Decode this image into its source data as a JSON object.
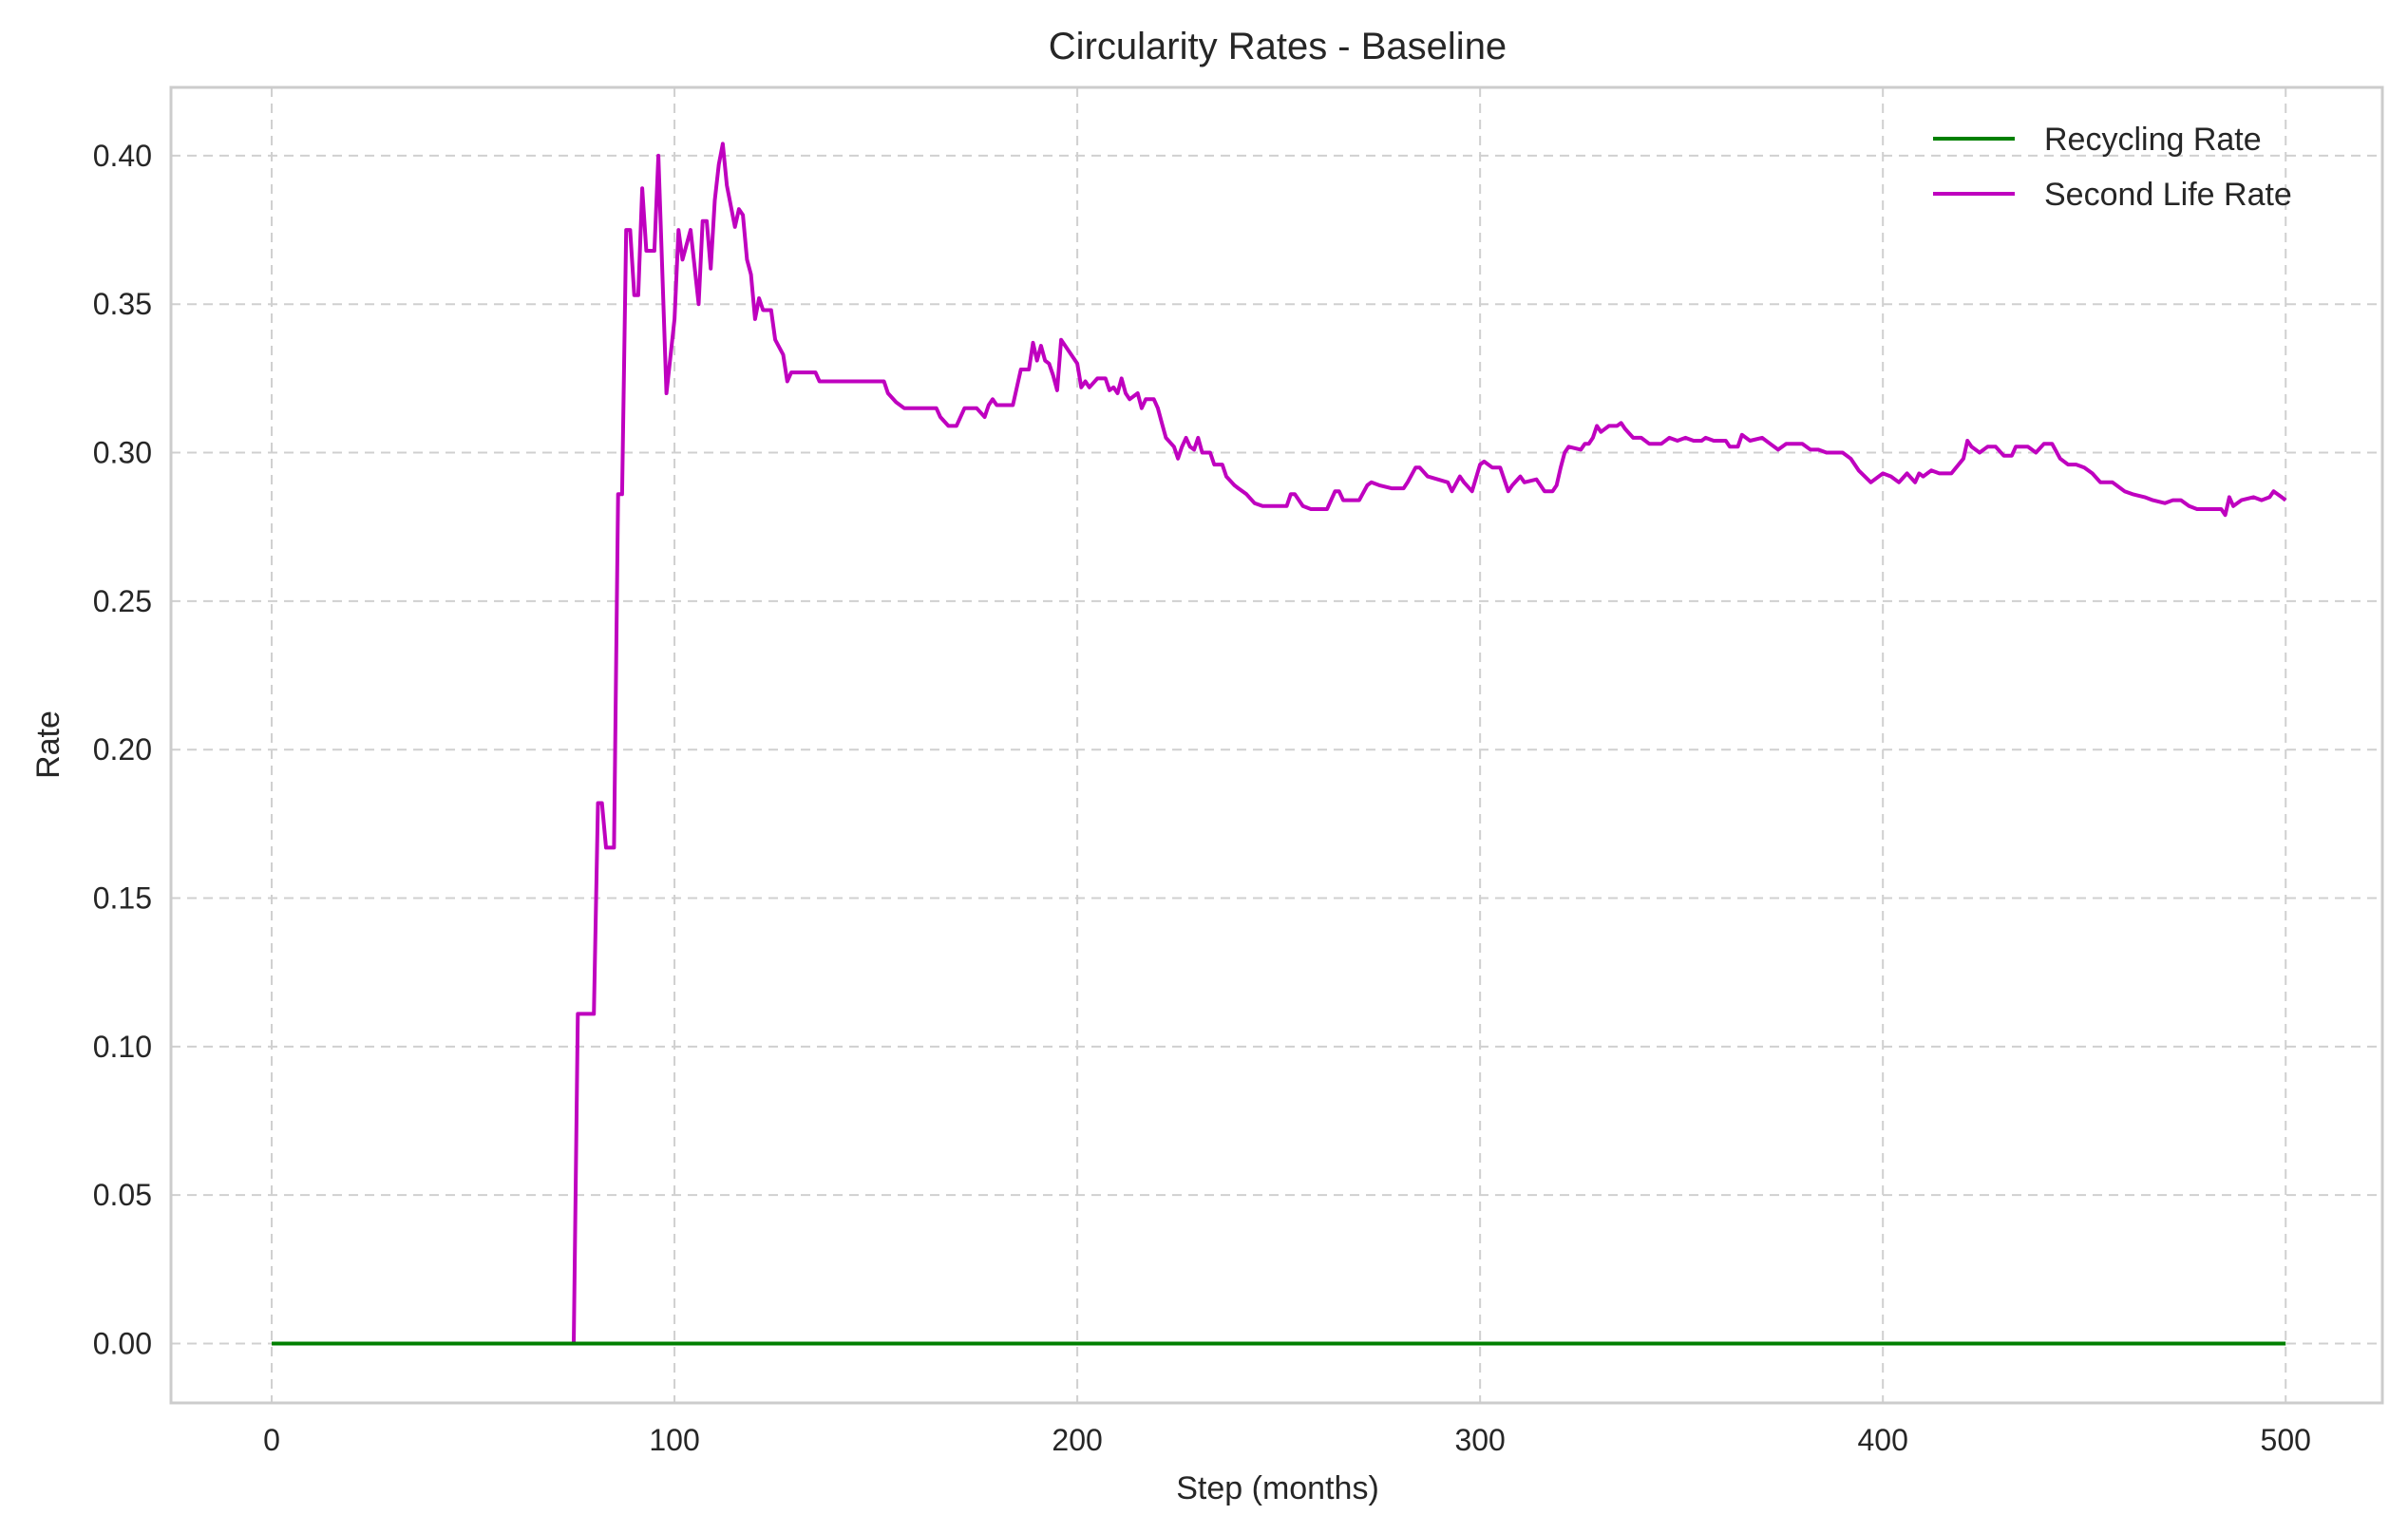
{
  "chart_data": {
    "type": "line",
    "title": "Circularity Rates - Baseline",
    "xlabel": "Step (months)",
    "ylabel": "Rate",
    "xlim": [
      -25,
      524
    ],
    "ylim": [
      -0.02,
      0.423
    ],
    "x_ticks": [
      0,
      100,
      200,
      300,
      400,
      500
    ],
    "y_ticks": [
      0.0,
      0.05,
      0.1,
      0.15,
      0.2,
      0.25,
      0.3,
      0.35,
      0.4
    ],
    "grid": true,
    "legend_position": "top-right",
    "colors": {
      "recycling": "#008000",
      "second_life": "#bf00bf"
    },
    "series": [
      {
        "name": "Recycling Rate",
        "color": "#008000",
        "points": [
          [
            0,
            0
          ],
          [
            500,
            0
          ]
        ]
      },
      {
        "name": "Second Life Rate",
        "color": "#bf00bf",
        "points": [
          [
            0,
            0
          ],
          [
            75,
            0
          ],
          [
            76,
            0.111
          ],
          [
            80,
            0.111
          ],
          [
            81,
            0.182
          ],
          [
            82,
            0.182
          ],
          [
            83,
            0.167
          ],
          [
            85,
            0.167
          ],
          [
            86,
            0.286
          ],
          [
            87,
            0.286
          ],
          [
            88,
            0.375
          ],
          [
            89,
            0.375
          ],
          [
            90,
            0.353
          ],
          [
            91,
            0.353
          ],
          [
            92,
            0.389
          ],
          [
            93,
            0.368
          ],
          [
            95,
            0.368
          ],
          [
            96,
            0.4
          ],
          [
            98,
            0.32
          ],
          [
            100,
            0.345
          ],
          [
            101,
            0.375
          ],
          [
            102,
            0.365
          ],
          [
            104,
            0.375
          ],
          [
            106,
            0.35
          ],
          [
            107,
            0.378
          ],
          [
            108,
            0.378
          ],
          [
            109,
            0.362
          ],
          [
            110,
            0.385
          ],
          [
            111,
            0.397
          ],
          [
            112,
            0.404
          ],
          [
            113,
            0.39
          ],
          [
            115,
            0.376
          ],
          [
            116,
            0.382
          ],
          [
            117,
            0.38
          ],
          [
            118,
            0.365
          ],
          [
            119,
            0.36
          ],
          [
            120,
            0.345
          ],
          [
            121,
            0.352
          ],
          [
            122,
            0.348
          ],
          [
            124,
            0.348
          ],
          [
            125,
            0.338
          ],
          [
            127,
            0.333
          ],
          [
            128,
            0.324
          ],
          [
            129,
            0.327
          ],
          [
            135,
            0.327
          ],
          [
            136,
            0.324
          ],
          [
            152,
            0.324
          ],
          [
            153,
            0.32
          ],
          [
            155,
            0.317
          ],
          [
            157,
            0.315
          ],
          [
            165,
            0.315
          ],
          [
            166,
            0.312
          ],
          [
            168,
            0.309
          ],
          [
            170,
            0.309
          ],
          [
            172,
            0.315
          ],
          [
            175,
            0.315
          ],
          [
            177,
            0.312
          ],
          [
            178,
            0.316
          ],
          [
            179,
            0.318
          ],
          [
            180,
            0.316
          ],
          [
            184,
            0.316
          ],
          [
            186,
            0.328
          ],
          [
            188,
            0.328
          ],
          [
            189,
            0.337
          ],
          [
            190,
            0.331
          ],
          [
            191,
            0.336
          ],
          [
            192,
            0.331
          ],
          [
            193,
            0.33
          ],
          [
            194,
            0.326
          ],
          [
            195,
            0.321
          ],
          [
            196,
            0.338
          ],
          [
            198,
            0.334
          ],
          [
            200,
            0.33
          ],
          [
            201,
            0.322
          ],
          [
            202,
            0.324
          ],
          [
            203,
            0.322
          ],
          [
            205,
            0.325
          ],
          [
            207,
            0.325
          ],
          [
            208,
            0.321
          ],
          [
            209,
            0.322
          ],
          [
            210,
            0.32
          ],
          [
            211,
            0.325
          ],
          [
            212,
            0.32
          ],
          [
            213,
            0.318
          ],
          [
            215,
            0.32
          ],
          [
            216,
            0.315
          ],
          [
            217,
            0.318
          ],
          [
            219,
            0.318
          ],
          [
            220,
            0.315
          ],
          [
            221,
            0.31
          ],
          [
            222,
            0.305
          ],
          [
            224,
            0.302
          ],
          [
            225,
            0.298
          ],
          [
            226,
            0.302
          ],
          [
            227,
            0.305
          ],
          [
            228,
            0.302
          ],
          [
            229,
            0.301
          ],
          [
            230,
            0.305
          ],
          [
            231,
            0.3
          ],
          [
            233,
            0.3
          ],
          [
            234,
            0.296
          ],
          [
            236,
            0.296
          ],
          [
            237,
            0.292
          ],
          [
            239,
            0.289
          ],
          [
            240,
            0.288
          ],
          [
            242,
            0.286
          ],
          [
            244,
            0.283
          ],
          [
            246,
            0.282
          ],
          [
            252,
            0.282
          ],
          [
            253,
            0.286
          ],
          [
            254,
            0.286
          ],
          [
            256,
            0.282
          ],
          [
            258,
            0.281
          ],
          [
            262,
            0.281
          ],
          [
            264,
            0.287
          ],
          [
            265,
            0.287
          ],
          [
            266,
            0.284
          ],
          [
            270,
            0.284
          ],
          [
            272,
            0.289
          ],
          [
            273,
            0.29
          ],
          [
            275,
            0.289
          ],
          [
            278,
            0.288
          ],
          [
            281,
            0.288
          ],
          [
            282,
            0.29
          ],
          [
            284,
            0.295
          ],
          [
            285,
            0.295
          ],
          [
            287,
            0.292
          ],
          [
            292,
            0.29
          ],
          [
            293,
            0.287
          ],
          [
            295,
            0.292
          ],
          [
            296,
            0.29
          ],
          [
            298,
            0.287
          ],
          [
            300,
            0.296
          ],
          [
            301,
            0.297
          ],
          [
            303,
            0.295
          ],
          [
            305,
            0.295
          ],
          [
            307,
            0.287
          ],
          [
            308,
            0.289
          ],
          [
            310,
            0.292
          ],
          [
            311,
            0.29
          ],
          [
            314,
            0.291
          ],
          [
            316,
            0.287
          ],
          [
            318,
            0.287
          ],
          [
            319,
            0.289
          ],
          [
            320,
            0.295
          ],
          [
            321,
            0.3
          ],
          [
            322,
            0.302
          ],
          [
            325,
            0.301
          ],
          [
            326,
            0.303
          ],
          [
            327,
            0.303
          ],
          [
            328,
            0.305
          ],
          [
            329,
            0.309
          ],
          [
            330,
            0.307
          ],
          [
            332,
            0.309
          ],
          [
            334,
            0.309
          ],
          [
            335,
            0.31
          ],
          [
            336,
            0.308
          ],
          [
            338,
            0.305
          ],
          [
            340,
            0.305
          ],
          [
            342,
            0.303
          ],
          [
            345,
            0.303
          ],
          [
            347,
            0.305
          ],
          [
            349,
            0.304
          ],
          [
            351,
            0.305
          ],
          [
            353,
            0.304
          ],
          [
            355,
            0.304
          ],
          [
            356,
            0.305
          ],
          [
            358,
            0.304
          ],
          [
            361,
            0.304
          ],
          [
            362,
            0.302
          ],
          [
            364,
            0.302
          ],
          [
            365,
            0.306
          ],
          [
            367,
            0.304
          ],
          [
            370,
            0.305
          ],
          [
            372,
            0.303
          ],
          [
            374,
            0.301
          ],
          [
            376,
            0.303
          ],
          [
            380,
            0.303
          ],
          [
            382,
            0.301
          ],
          [
            384,
            0.301
          ],
          [
            386,
            0.3
          ],
          [
            390,
            0.3
          ],
          [
            392,
            0.298
          ],
          [
            394,
            0.294
          ],
          [
            397,
            0.29
          ],
          [
            400,
            0.293
          ],
          [
            402,
            0.292
          ],
          [
            404,
            0.29
          ],
          [
            406,
            0.293
          ],
          [
            408,
            0.29
          ],
          [
            409,
            0.293
          ],
          [
            410,
            0.292
          ],
          [
            412,
            0.294
          ],
          [
            414,
            0.293
          ],
          [
            417,
            0.293
          ],
          [
            420,
            0.298
          ],
          [
            421,
            0.304
          ],
          [
            422,
            0.302
          ],
          [
            424,
            0.3
          ],
          [
            426,
            0.302
          ],
          [
            428,
            0.302
          ],
          [
            430,
            0.299
          ],
          [
            432,
            0.299
          ],
          [
            433,
            0.302
          ],
          [
            436,
            0.302
          ],
          [
            438,
            0.3
          ],
          [
            440,
            0.303
          ],
          [
            442,
            0.303
          ],
          [
            444,
            0.298
          ],
          [
            446,
            0.296
          ],
          [
            448,
            0.296
          ],
          [
            450,
            0.295
          ],
          [
            452,
            0.293
          ],
          [
            454,
            0.29
          ],
          [
            457,
            0.29
          ],
          [
            460,
            0.287
          ],
          [
            462,
            0.286
          ],
          [
            465,
            0.285
          ],
          [
            467,
            0.284
          ],
          [
            470,
            0.283
          ],
          [
            472,
            0.284
          ],
          [
            474,
            0.284
          ],
          [
            476,
            0.282
          ],
          [
            478,
            0.281
          ],
          [
            484,
            0.281
          ],
          [
            485,
            0.279
          ],
          [
            486,
            0.285
          ],
          [
            487,
            0.282
          ],
          [
            489,
            0.284
          ],
          [
            492,
            0.285
          ],
          [
            494,
            0.284
          ],
          [
            496,
            0.285
          ],
          [
            497,
            0.287
          ],
          [
            499,
            0.285
          ],
          [
            500,
            0.284
          ]
        ]
      }
    ]
  }
}
